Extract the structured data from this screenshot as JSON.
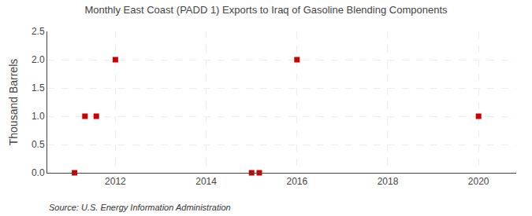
{
  "chart_data": {
    "type": "scatter",
    "title": "Monthly East Coast (PADD 1) Exports to Iraq of Gasoline Blending Components",
    "ylabel": "Thousand Barrels",
    "annotations": [
      "Source: U.S. Energy Information Administration"
    ],
    "x": [
      2011.1,
      2011.33,
      2011.58,
      2012.0,
      2015.0,
      2015.17,
      2016.0,
      2020.0
    ],
    "values": [
      0.0,
      1.0,
      1.0,
      2.0,
      0.0,
      0.0,
      2.0,
      1.0
    ],
    "color": "#cc0000",
    "marker": "square",
    "xlim": [
      2010.5,
      2020.83
    ],
    "ylim": [
      0.0,
      2.5
    ],
    "xticks": [
      2012,
      2014,
      2016,
      2018,
      2020
    ],
    "yticks": [
      {
        "value": 0.0,
        "label": "0.0"
      },
      0.5,
      {
        "value": 1.0,
        "label": "1.0"
      },
      1.5,
      {
        "value": 2.0,
        "label": "2.0"
      },
      2.5
    ],
    "grid": true
  }
}
